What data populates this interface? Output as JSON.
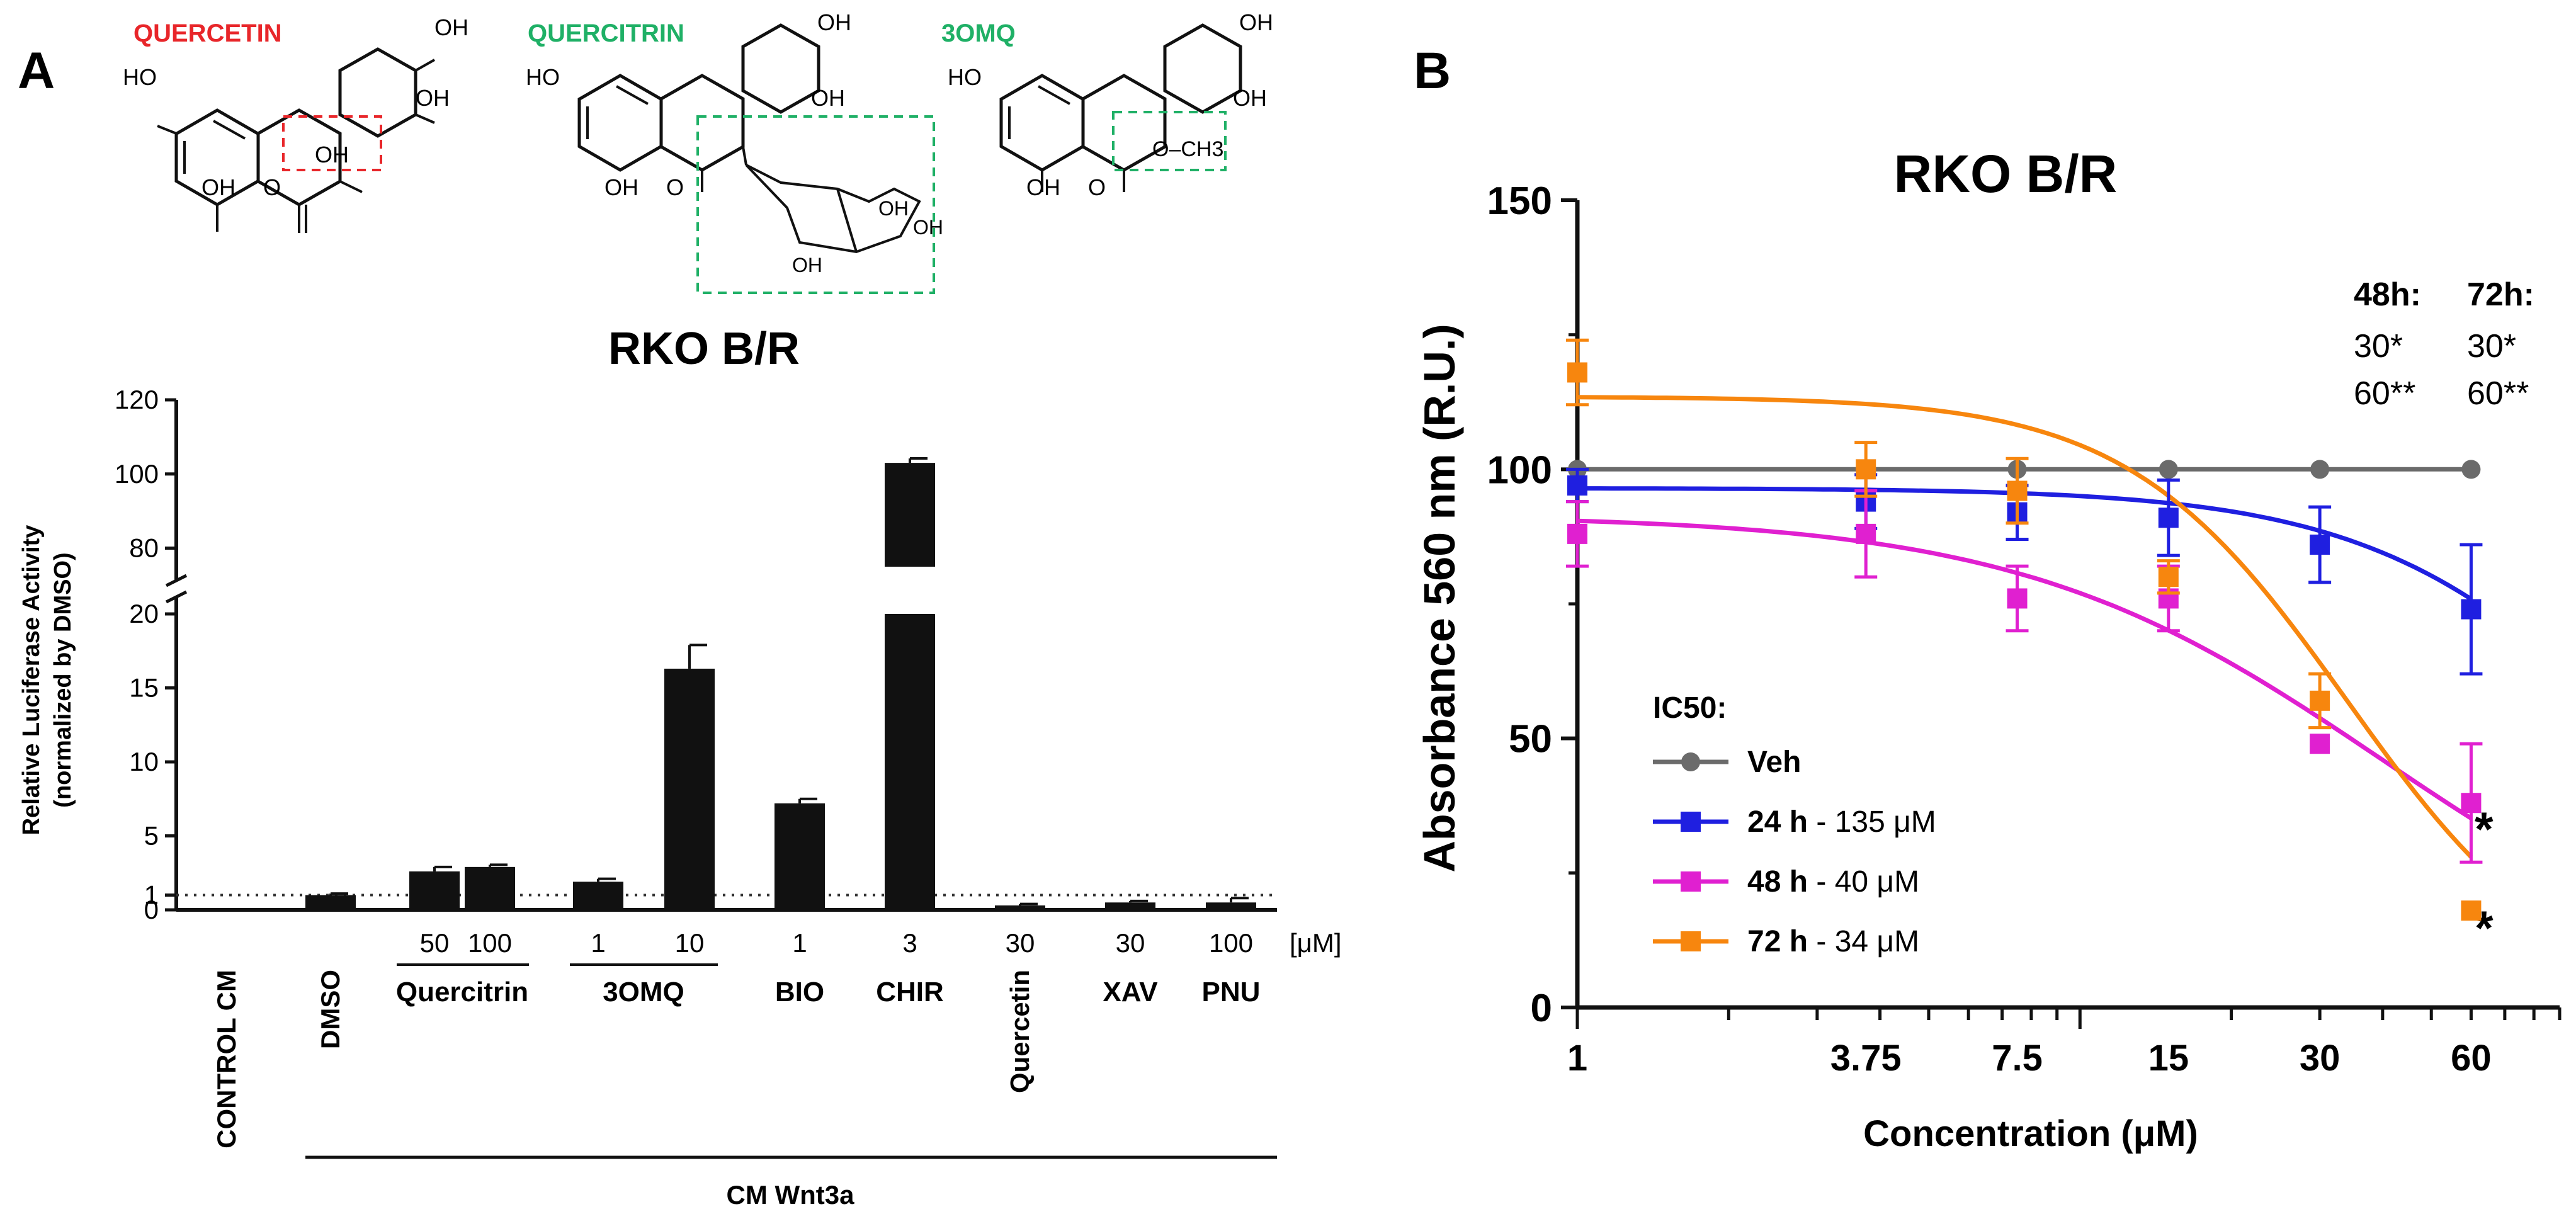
{
  "panels": {
    "a_label": "A",
    "b_label": "B"
  },
  "structures": {
    "quercetin": {
      "name": "QUERCETIN",
      "color": "#e8262a",
      "groups": {
        "oh_a": "OH",
        "oh_b": "OH",
        "oh_c": "HO",
        "oh_d": "OH",
        "oh_e": "OH",
        "o": "O"
      }
    },
    "quercitrin": {
      "name": "QUERCITRIN",
      "color": "#1fb066",
      "groups": {
        "oh_a": "OH",
        "oh_b": "OH",
        "oh_c": "HO",
        "oh_d": "OH",
        "o": "O",
        "oh_s1": "OH",
        "oh_s2": "OH",
        "oh_s3": "OH"
      }
    },
    "omq": {
      "name": "3OMQ",
      "color": "#1fb066",
      "groups": {
        "oh_a": "OH",
        "oh_b": "OH",
        "oh_c": "HO",
        "oh_d": "OH",
        "o": "O",
        "och3": "O–CH3"
      }
    }
  },
  "chart_data": [
    {
      "type": "bar",
      "title": "RKO B/R",
      "ylabel": "Relative Luciferase Activity",
      "ylabel2": "(normalized by DMSO)",
      "unit": "[μM]",
      "group_label": "CM Wnt3a",
      "ylim_lower": [
        0,
        20
      ],
      "ylim_upper": [
        75,
        120
      ],
      "yticks_lower": [
        "0",
        "1",
        "5",
        "10",
        "15",
        "20"
      ],
      "yticks_upper": [
        "80",
        "100",
        "120"
      ],
      "reference_line": 1,
      "bars": [
        {
          "label": "CONTROL CM",
          "dose": "",
          "value": 0.0,
          "error": 0.0
        },
        {
          "label": "DMSO",
          "dose": "",
          "value": 1.0,
          "error": 0.1
        },
        {
          "label": "Quercitrin",
          "dose": "50",
          "value": 2.6,
          "error": 0.3
        },
        {
          "label": "Quercitrin",
          "dose": "100",
          "value": 2.9,
          "error": 0.15
        },
        {
          "label": "3OMQ",
          "dose": "1",
          "value": 1.9,
          "error": 0.2
        },
        {
          "label": "3OMQ",
          "dose": "10",
          "value": 16.3,
          "error": 1.6
        },
        {
          "label": "BIO",
          "dose": "1",
          "value": 7.2,
          "error": 0.3
        },
        {
          "label": "CHIR",
          "dose": "3",
          "value": 103,
          "error": 1.2
        },
        {
          "label": "Quercetin",
          "dose": "30",
          "value": 0.3,
          "error": 0.1
        },
        {
          "label": "XAV",
          "dose": "30",
          "value": 0.5,
          "error": 0.1
        },
        {
          "label": "PNU",
          "dose": "100",
          "value": 0.5,
          "error": 0.3
        }
      ],
      "group_names": [
        "Quercitrin",
        "3OMQ"
      ]
    },
    {
      "type": "line",
      "title": "RKO B/R",
      "xlabel": "Concentration (μM)",
      "ylabel": "Absorbance 560 nm (R.U.)",
      "xscale": "log",
      "xticks": [
        "1",
        "3.75",
        "7.5",
        "15",
        "30",
        "60"
      ],
      "yticks": [
        "0",
        "50",
        "100",
        "150"
      ],
      "xlim": [
        1,
        90
      ],
      "ylim": [
        0,
        150
      ],
      "legend_title": "IC50:",
      "series": [
        {
          "name": "Veh",
          "ic50": "",
          "color": "#6b6b6b",
          "marker": "circle",
          "x": [
            1,
            3.75,
            7.5,
            15,
            30,
            60
          ],
          "y": [
            100,
            100,
            100,
            100,
            100,
            100
          ],
          "err": [
            0,
            0,
            0,
            0,
            0,
            0
          ]
        },
        {
          "name": "24 h",
          "ic50": " - 135 μM",
          "color": "#1f1fe0",
          "marker": "square",
          "x": [
            1,
            3.75,
            7.5,
            15,
            30,
            60
          ],
          "y": [
            97,
            94,
            92,
            91,
            86,
            74
          ],
          "err": [
            3,
            5,
            5,
            7,
            7,
            12
          ]
        },
        {
          "name": "48 h",
          "ic50": " - 40 μM",
          "color": "#e020d0",
          "marker": "square",
          "x": [
            1,
            3.75,
            7.5,
            15,
            30,
            60
          ],
          "y": [
            88,
            88,
            76,
            76,
            49,
            38
          ],
          "err": [
            6,
            8,
            6,
            6,
            0,
            11
          ]
        },
        {
          "name": "72 h",
          "ic50": " - 34 μM",
          "color": "#f7860e",
          "marker": "square",
          "x": [
            1,
            3.75,
            7.5,
            15,
            30,
            60
          ],
          "y": [
            118,
            100,
            96,
            80,
            57,
            18
          ],
          "err": [
            6,
            5,
            6,
            3,
            5,
            0
          ]
        }
      ],
      "significance": {
        "h48_title": "48h:",
        "h72_title": "72h:",
        "h48_vals": [
          "30*",
          "60**"
        ],
        "h72_vals": [
          "30*",
          "60**"
        ],
        "markers": [
          "*",
          "*"
        ]
      }
    }
  ]
}
